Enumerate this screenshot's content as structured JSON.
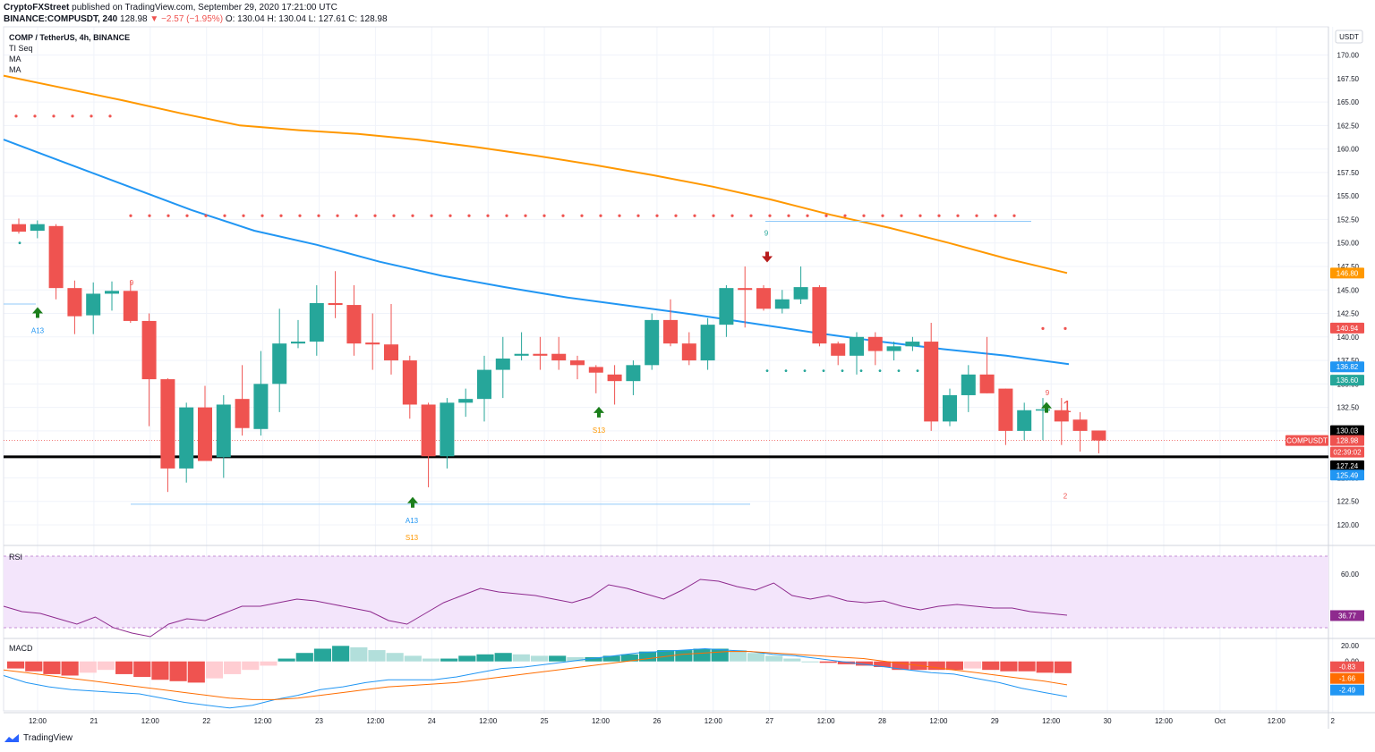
{
  "header": {
    "publisher": "CryptoFXStreet",
    "published": "published on TradingView.com, September 29, 2020 17:21:00 UTC",
    "ticker": "BINANCE:COMPUSDT, 240",
    "last": "128.98",
    "change": "▼ −2.57 (−1.95%)",
    "open": "O: 130.04",
    "high": "H: 130.04",
    "low": "L: 127.61",
    "close": "C: 128.98"
  },
  "legend": {
    "symbol": "COMP / TetherUS, 4h, BINANCE",
    "ind1": "TI Seq",
    "ind2": "MA",
    "ind3": "MA"
  },
  "currency": "USDT",
  "panels": {
    "rsi": "RSI",
    "macd": "MACD"
  },
  "footer": {
    "brand": "TradingView"
  },
  "colors": {
    "up": "#26a69a",
    "down": "#ef5350",
    "ma_fast": "#2196f3",
    "ma_slow": "#ff9800",
    "rsi": "#8e2a8e",
    "macd": "#2196f3",
    "signal": "#ff6d00"
  },
  "chart_data": [
    {
      "type": "candlestick",
      "title": "COMP / TetherUS, 4h, BINANCE",
      "ylim": [
        118,
        173
      ],
      "y_ticks": [
        120,
        122.5,
        125,
        127.5,
        130,
        132.5,
        135,
        137.5,
        140,
        142.5,
        145,
        147.5,
        150,
        152.5,
        155,
        157.5,
        160,
        162.5,
        165,
        167.5,
        170
      ],
      "x_ticks": [
        "12:00",
        "21",
        "12:00",
        "22",
        "12:00",
        "23",
        "12:00",
        "24",
        "12:00",
        "25",
        "12:00",
        "26",
        "12:00",
        "27",
        "12:00",
        "28",
        "12:00",
        "29",
        "12:00",
        "30",
        "12:00",
        "Oct",
        "12:00",
        "2"
      ],
      "candles": [
        {
          "o": 152.0,
          "h": 152.6,
          "l": 151.0,
          "c": 151.2
        },
        {
          "o": 151.3,
          "h": 152.4,
          "l": 150.5,
          "c": 152.0
        },
        {
          "o": 151.8,
          "h": 152.0,
          "l": 144.0,
          "c": 145.2
        },
        {
          "o": 145.2,
          "h": 146.0,
          "l": 140.3,
          "c": 142.2
        },
        {
          "o": 142.3,
          "h": 145.8,
          "l": 140.3,
          "c": 144.6
        },
        {
          "o": 144.6,
          "h": 145.9,
          "l": 142.8,
          "c": 144.9
        },
        {
          "o": 144.9,
          "h": 146.0,
          "l": 141.5,
          "c": 141.7
        },
        {
          "o": 141.7,
          "h": 142.5,
          "l": 130.5,
          "c": 135.5
        },
        {
          "o": 135.5,
          "h": 135.6,
          "l": 123.5,
          "c": 126.0
        },
        {
          "o": 126.0,
          "h": 133.0,
          "l": 124.5,
          "c": 132.5
        },
        {
          "o": 132.5,
          "h": 134.8,
          "l": 126.8,
          "c": 126.8
        },
        {
          "o": 127.2,
          "h": 133.8,
          "l": 125.0,
          "c": 132.8
        },
        {
          "o": 133.4,
          "h": 137.0,
          "l": 129.5,
          "c": 130.3
        },
        {
          "o": 130.2,
          "h": 138.5,
          "l": 129.5,
          "c": 135.0
        },
        {
          "o": 135.0,
          "h": 143.0,
          "l": 132.0,
          "c": 139.3
        },
        {
          "o": 139.3,
          "h": 141.8,
          "l": 138.8,
          "c": 139.5
        },
        {
          "o": 139.5,
          "h": 145.5,
          "l": 138.0,
          "c": 143.6
        },
        {
          "o": 143.6,
          "h": 147.0,
          "l": 142.0,
          "c": 143.4
        },
        {
          "o": 143.4,
          "h": 145.5,
          "l": 138.0,
          "c": 139.3
        },
        {
          "o": 139.4,
          "h": 142.5,
          "l": 136.5,
          "c": 139.2
        },
        {
          "o": 139.2,
          "h": 143.5,
          "l": 136.0,
          "c": 137.5
        },
        {
          "o": 137.5,
          "h": 138.0,
          "l": 131.3,
          "c": 132.8
        },
        {
          "o": 132.8,
          "h": 133.0,
          "l": 124.0,
          "c": 127.3
        },
        {
          "o": 127.3,
          "h": 133.5,
          "l": 126.0,
          "c": 133.0
        },
        {
          "o": 133.0,
          "h": 134.5,
          "l": 131.5,
          "c": 133.4
        },
        {
          "o": 133.4,
          "h": 138.0,
          "l": 131.0,
          "c": 136.5
        },
        {
          "o": 136.5,
          "h": 140.0,
          "l": 133.5,
          "c": 137.7
        },
        {
          "o": 138.0,
          "h": 140.5,
          "l": 137.5,
          "c": 138.2
        },
        {
          "o": 138.2,
          "h": 140.0,
          "l": 136.5,
          "c": 138.0
        },
        {
          "o": 138.2,
          "h": 140.0,
          "l": 136.5,
          "c": 137.5
        },
        {
          "o": 137.5,
          "h": 138.0,
          "l": 135.5,
          "c": 137.0
        },
        {
          "o": 136.8,
          "h": 137.0,
          "l": 134.0,
          "c": 136.2
        },
        {
          "o": 136.0,
          "h": 137.0,
          "l": 132.8,
          "c": 135.3
        },
        {
          "o": 135.3,
          "h": 137.5,
          "l": 133.8,
          "c": 137.0
        },
        {
          "o": 137.0,
          "h": 142.5,
          "l": 136.5,
          "c": 141.8
        },
        {
          "o": 141.8,
          "h": 144.0,
          "l": 139.0,
          "c": 139.3
        },
        {
          "o": 139.3,
          "h": 140.5,
          "l": 137.0,
          "c": 137.5
        },
        {
          "o": 137.5,
          "h": 142.0,
          "l": 136.5,
          "c": 141.3
        },
        {
          "o": 141.3,
          "h": 145.5,
          "l": 140.0,
          "c": 145.2
        },
        {
          "o": 145.2,
          "h": 147.5,
          "l": 141.0,
          "c": 145.0
        },
        {
          "o": 145.2,
          "h": 145.5,
          "l": 142.8,
          "c": 143.0
        },
        {
          "o": 143.0,
          "h": 145.0,
          "l": 142.5,
          "c": 144.0
        },
        {
          "o": 144.0,
          "h": 147.5,
          "l": 143.5,
          "c": 145.3
        },
        {
          "o": 145.3,
          "h": 145.5,
          "l": 139.0,
          "c": 139.3
        },
        {
          "o": 139.3,
          "h": 139.5,
          "l": 137.0,
          "c": 138.0
        },
        {
          "o": 138.0,
          "h": 140.5,
          "l": 136.0,
          "c": 140.0
        },
        {
          "o": 140.0,
          "h": 140.5,
          "l": 137.0,
          "c": 138.5
        },
        {
          "o": 138.5,
          "h": 139.5,
          "l": 137.5,
          "c": 139.0
        },
        {
          "o": 139.0,
          "h": 140.0,
          "l": 138.5,
          "c": 139.5
        },
        {
          "o": 139.5,
          "h": 141.5,
          "l": 130.0,
          "c": 131.0
        },
        {
          "o": 131.0,
          "h": 134.5,
          "l": 130.5,
          "c": 133.8
        },
        {
          "o": 133.8,
          "h": 137.0,
          "l": 132.0,
          "c": 136.0
        },
        {
          "o": 136.0,
          "h": 140.0,
          "l": 134.0,
          "c": 134.0
        },
        {
          "o": 134.5,
          "h": 134.5,
          "l": 128.5,
          "c": 130.0
        },
        {
          "o": 130.0,
          "h": 133.0,
          "l": 129.0,
          "c": 132.2
        },
        {
          "o": 132.2,
          "h": 133.5,
          "l": 129.0,
          "c": 132.3
        },
        {
          "o": 132.2,
          "h": 133.5,
          "l": 128.5,
          "c": 131.0
        },
        {
          "o": 131.2,
          "h": 132.0,
          "l": 127.8,
          "c": 130.0
        },
        {
          "o": 130.04,
          "h": 130.04,
          "l": 127.61,
          "c": 128.98
        }
      ],
      "ma_fast": [
        161.0,
        158.5,
        156.0,
        153.5,
        151.3,
        149.8,
        148.0,
        146.5,
        145.3,
        144.2,
        143.3,
        142.4,
        141.4,
        140.4,
        139.5,
        138.7,
        138.0,
        137.1
      ],
      "ma_slow": [
        167.8,
        166.5,
        165.2,
        163.8,
        162.5,
        162.0,
        161.6,
        161.0,
        160.2,
        159.3,
        158.3,
        157.2,
        156.0,
        154.6,
        153.0,
        151.6,
        150.0,
        148.3,
        146.8
      ],
      "price_labels": [
        "146.80",
        "140.94",
        "136.82",
        "136.60",
        "130.03",
        "128.98",
        "02:39:02",
        "127.24",
        "125.49"
      ],
      "instrument_label": "COMPUSDT",
      "support_level": 127.24,
      "seq_markers": [
        "A13",
        "9",
        "S13",
        "9",
        "9",
        "A13",
        "S13",
        "1",
        "2"
      ]
    },
    {
      "type": "line",
      "title": "RSI",
      "ylim": [
        20,
        70
      ],
      "y_ticks": [
        20,
        60
      ],
      "band": [
        30,
        70
      ],
      "current_label": "36.77",
      "values": [
        42,
        39,
        38,
        35,
        32,
        36,
        30,
        27,
        25,
        32,
        35,
        34,
        38,
        42,
        42,
        44,
        46,
        45,
        43,
        41,
        39,
        34,
        32,
        38,
        44,
        48,
        52,
        50,
        49,
        48,
        46,
        44,
        47,
        54,
        52,
        49,
        46,
        51,
        57,
        56,
        53,
        51,
        55,
        48,
        46,
        48,
        45,
        44,
        45,
        42,
        40,
        42,
        43,
        42,
        41,
        41,
        39,
        38,
        37
      ]
    },
    {
      "type": "bar+line",
      "title": "MACD",
      "ylim": [
        -3.5,
        1.5
      ],
      "y_ticks": [
        0
      ],
      "current_labels": [
        "-0.83",
        "-1.66",
        "-2.49"
      ],
      "histogram": [
        -0.5,
        -0.7,
        -0.9,
        -1.0,
        -0.8,
        -0.6,
        -0.9,
        -1.1,
        -1.3,
        -1.4,
        -1.5,
        -1.2,
        -0.9,
        -0.6,
        -0.3,
        0.2,
        0.6,
        0.9,
        1.1,
        1.0,
        0.8,
        0.6,
        0.4,
        0.2,
        0.2,
        0.4,
        0.5,
        0.6,
        0.5,
        0.4,
        0.4,
        0.3,
        0.3,
        0.4,
        0.5,
        0.7,
        0.8,
        0.8,
        0.9,
        0.9,
        0.8,
        0.6,
        0.4,
        0.2,
        0.0,
        -0.1,
        -0.2,
        -0.3,
        -0.4,
        -0.6,
        -0.6,
        -0.6,
        -0.6,
        -0.5,
        -0.6,
        -0.7,
        -0.7,
        -0.8,
        -0.83
      ],
      "macd": [
        -1.0,
        -1.5,
        -1.8,
        -2.0,
        -2.1,
        -2.2,
        -2.3,
        -2.6,
        -2.9,
        -3.1,
        -3.3,
        -3.1,
        -2.7,
        -2.4,
        -2.0,
        -1.8,
        -1.5,
        -1.3,
        -1.3,
        -1.3,
        -1.1,
        -0.8,
        -0.5,
        -0.4,
        -0.2,
        0.0,
        0.2,
        0.4,
        0.6,
        0.7,
        0.8,
        0.9,
        0.8,
        0.7,
        0.5,
        0.4,
        0.2,
        0.0,
        -0.2,
        -0.4,
        -0.6,
        -0.8,
        -0.9,
        -1.2,
        -1.5,
        -1.9,
        -2.2,
        -2.49
      ],
      "signal": [
        -0.6,
        -0.8,
        -1.0,
        -1.2,
        -1.4,
        -1.6,
        -1.8,
        -2.0,
        -2.2,
        -2.4,
        -2.6,
        -2.7,
        -2.7,
        -2.6,
        -2.4,
        -2.2,
        -2.0,
        -1.8,
        -1.7,
        -1.6,
        -1.5,
        -1.3,
        -1.1,
        -0.9,
        -0.7,
        -0.5,
        -0.3,
        -0.1,
        0.1,
        0.3,
        0.5,
        0.6,
        0.7,
        0.7,
        0.6,
        0.5,
        0.4,
        0.3,
        0.2,
        0.0,
        -0.2,
        -0.4,
        -0.6,
        -0.8,
        -1.0,
        -1.2,
        -1.4,
        -1.66
      ]
    }
  ]
}
